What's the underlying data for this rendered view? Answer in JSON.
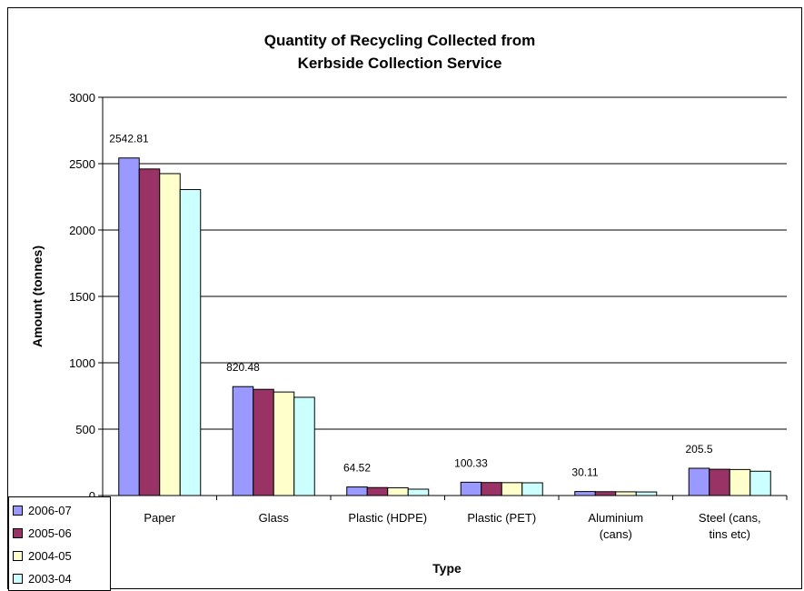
{
  "chart_data": {
    "type": "bar",
    "title": [
      "Quantity of Recycling Collected from",
      "Kerbside Collection Service"
    ],
    "xlabel": "Type",
    "ylabel": "Amount (tonnes)",
    "ylim": [
      0,
      3000
    ],
    "yticks": [
      "0",
      "500",
      "1000",
      "1500",
      "2000",
      "2500",
      "3000"
    ],
    "ytick_values": [
      0,
      500,
      1000,
      1500,
      2000,
      2500,
      3000
    ],
    "grid": true,
    "legend_position": "bottom-left",
    "categories": [
      [
        "Paper"
      ],
      [
        "Glass"
      ],
      [
        "Plastic (HDPE)"
      ],
      [
        "Plastic (PET)"
      ],
      [
        "Aluminium",
        "(cans)"
      ],
      [
        "Steel (cans,",
        "tins etc)"
      ]
    ],
    "series": [
      {
        "name": "2006-07",
        "color": "#9999ff",
        "values": [
          2542.81,
          820.48,
          64.52,
          100.33,
          30.11,
          205.5
        ]
      },
      {
        "name": "2005-06",
        "color": "#993366",
        "values": [
          2460,
          800,
          60,
          98,
          29,
          198
        ]
      },
      {
        "name": "2004-05",
        "color": "#ffffcc",
        "values": [
          2425,
          780,
          58,
          97,
          28,
          196
        ]
      },
      {
        "name": "2003-04",
        "color": "#ccffff",
        "values": [
          2305,
          740,
          48,
          96,
          27,
          183
        ]
      }
    ],
    "data_labels": [
      "2542.81",
      "820.48",
      "64.52",
      "100.33",
      "30.11",
      "205.5"
    ]
  }
}
